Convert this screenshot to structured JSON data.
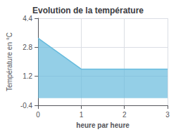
{
  "chart_data": {
    "type": "area",
    "title": "Evolution de la température",
    "xlabel": "heure par heure",
    "ylabel": "Température en °C",
    "x": [
      0,
      1,
      3
    ],
    "values": [
      3.3,
      1.6,
      1.6
    ],
    "color": "#66bbdd",
    "xlim": [
      0,
      3
    ],
    "xticks": [
      0,
      1,
      2,
      3
    ],
    "ylim": [
      -0.4,
      4.4
    ],
    "yticks": [
      -0.4,
      1.2,
      2.8,
      4.4
    ],
    "grid": true
  }
}
